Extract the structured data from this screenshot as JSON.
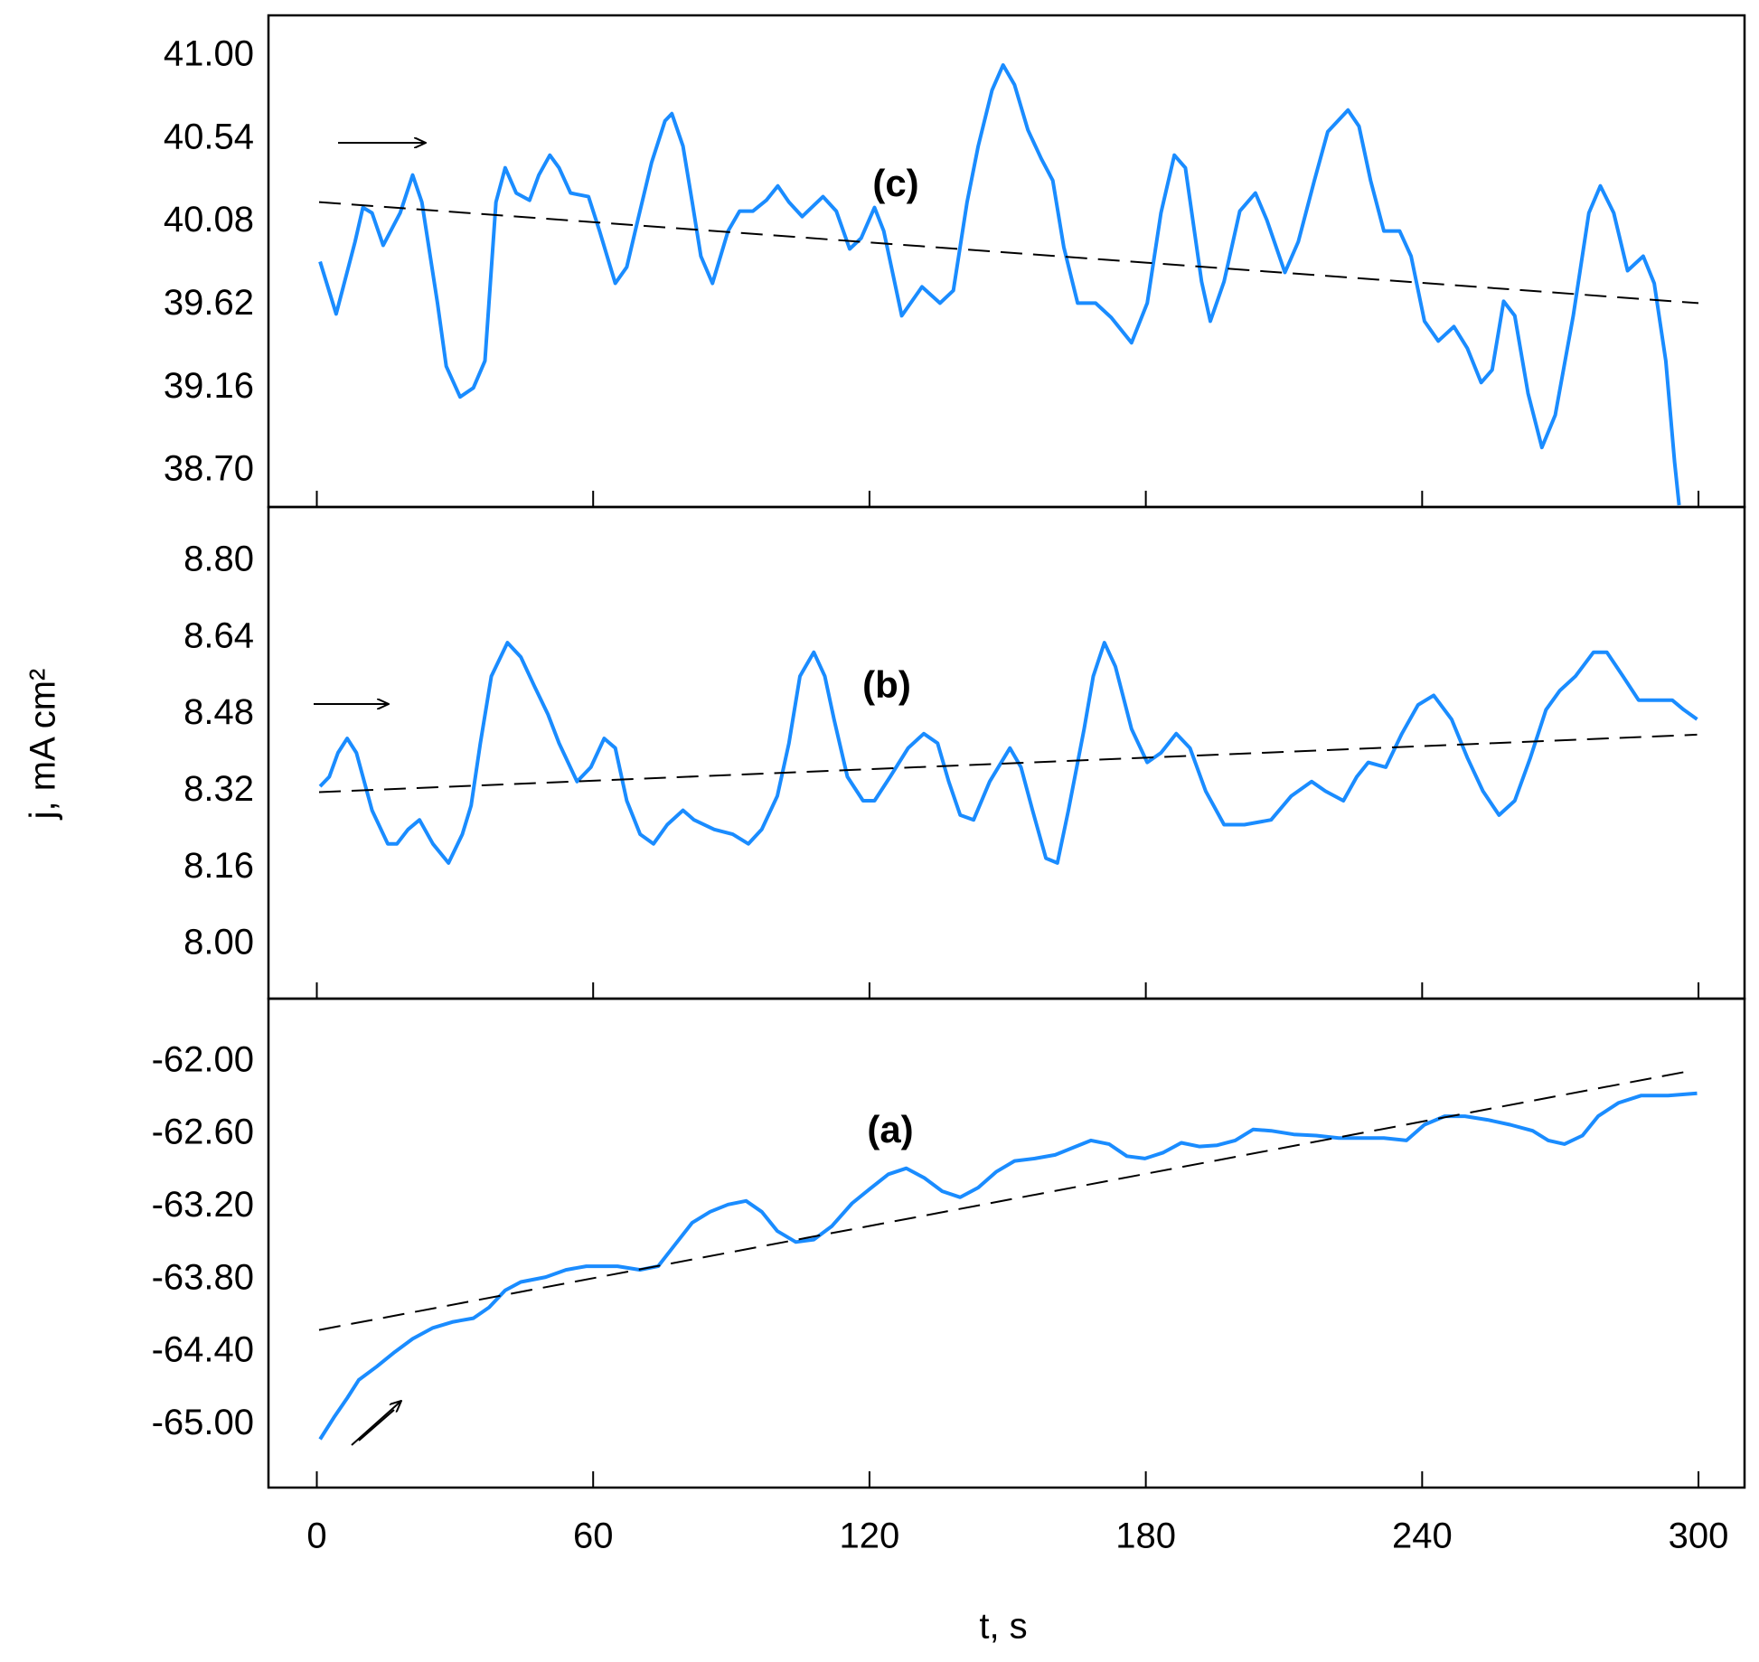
{
  "chart_data": [
    {
      "type": "line",
      "label": "(c)",
      "xlim": [
        -10.5,
        310
      ],
      "xticks": [
        0,
        60,
        120,
        180,
        240,
        300
      ],
      "ylim": [
        38.5,
        41.225
      ],
      "yticks": [
        {
          "value": 41,
          "label": "41.00"
        },
        40.54,
        40.08,
        39.62,
        39.16,
        {
          "value": 38.7,
          "label": "38.70"
        }
      ],
      "series": [
        {
          "color": "#1a8cff",
          "x": [
            0.7,
            4.2,
            8.3,
            10.0,
            12.0,
            14.4,
            18.1,
            20.8,
            22.8,
            26.2,
            28.1,
            31.1,
            34.0,
            36.5,
            38.9,
            40.9,
            43.3,
            46.2,
            48.2,
            50.6,
            52.6,
            55.1,
            59.0,
            61.4,
            64.8,
            67.3,
            69.7,
            72.7,
            75.6,
            77.1,
            79.5,
            81.5,
            83.4,
            85.9,
            89.3,
            91.8,
            94.7,
            97.6,
            100.1,
            102.5,
            105.4,
            109.9,
            112.8,
            115.7,
            118.2,
            121.1,
            123.1,
            127.0,
            131.4,
            135.3,
            138.2,
            141.2,
            143.6,
            146.6,
            149.0,
            151.5,
            154.4,
            157.3,
            159.8,
            162.2,
            165.2,
            169.1,
            172.5,
            176.9,
            180.3,
            183.3,
            186.2,
            188.6,
            192.1,
            194.0,
            197.0,
            200.4,
            203.8,
            206.3,
            210.2,
            213.1,
            216.6,
            219.5,
            223.9,
            226.3,
            228.8,
            231.7,
            235.1,
            237.6,
            240.5,
            243.5,
            246.9,
            249.8,
            252.8,
            255.2,
            257.7,
            260.1,
            263.0,
            266.0,
            268.9,
            272.8,
            276.2,
            278.7,
            281.6,
            284.6,
            288.0,
            290.4,
            292.9,
            294.8,
            295.8
          ],
          "values": [
            39.86,
            39.57,
            39.97,
            40.16,
            40.13,
            39.95,
            40.13,
            40.34,
            40.19,
            39.63,
            39.28,
            39.11,
            39.16,
            39.31,
            40.19,
            40.38,
            40.24,
            40.2,
            40.34,
            40.45,
            40.38,
            40.24,
            40.22,
            40.03,
            39.74,
            39.83,
            40.09,
            40.41,
            40.64,
            40.68,
            40.5,
            40.19,
            39.89,
            39.74,
            40.03,
            40.14,
            40.14,
            40.2,
            40.28,
            40.19,
            40.11,
            40.22,
            40.14,
            39.93,
            39.99,
            40.16,
            40.03,
            39.56,
            39.72,
            39.63,
            39.7,
            40.19,
            40.5,
            40.81,
            40.95,
            40.84,
            40.59,
            40.43,
            40.31,
            39.94,
            39.63,
            39.63,
            39.55,
            39.41,
            39.63,
            40.13,
            40.45,
            40.38,
            39.75,
            39.53,
            39.75,
            40.14,
            40.24,
            40.09,
            39.8,
            39.97,
            40.31,
            40.58,
            40.7,
            40.61,
            40.31,
            40.03,
            40.03,
            39.89,
            39.53,
            39.42,
            39.5,
            39.38,
            39.19,
            39.26,
            39.64,
            39.56,
            39.13,
            38.83,
            39.01,
            39.56,
            40.13,
            40.28,
            40.13,
            39.81,
            39.89,
            39.74,
            39.31,
            38.75,
            38.51
          ]
        },
        {
          "color": "#000000",
          "dashed": true,
          "x": [
            0.5,
            300
          ],
          "values": [
            40.19,
            39.63
          ]
        }
      ]
    },
    {
      "type": "line",
      "label": "(b)",
      "ylabel": "j, mA cm²",
      "xlim": [
        -10.5,
        310
      ],
      "xticks": [
        0,
        60,
        120,
        180,
        240,
        300
      ],
      "ylim": [
        7.887,
        8.913
      ],
      "yticks": [
        {
          "value": 8.8,
          "label": "8.80"
        },
        8.64,
        8.48,
        8.32,
        8.16,
        {
          "value": 8,
          "label": "8.00"
        }
      ],
      "series": [
        {
          "color": "#1a8cff",
          "x": [
            0.7,
            2.7,
            4.6,
            6.6,
            8.6,
            12.0,
            15.4,
            17.4,
            19.8,
            22.3,
            25.2,
            28.6,
            31.6,
            33.5,
            35.5,
            37.9,
            41.4,
            44.3,
            47.2,
            50.2,
            52.6,
            56.5,
            59.5,
            62.4,
            64.8,
            67.3,
            70.2,
            73.1,
            76.1,
            79.5,
            81.9,
            86.3,
            90.3,
            93.7,
            96.6,
            100.0,
            102.5,
            104.9,
            107.9,
            110.3,
            112.3,
            115.2,
            118.6,
            121.1,
            124.5,
            128.4,
            131.8,
            134.8,
            137.2,
            139.7,
            142.6,
            146.1,
            150.5,
            152.9,
            155.4,
            158.3,
            160.8,
            163.2,
            166.6,
            168.6,
            171.0,
            173.4,
            176.9,
            180.3,
            183.3,
            186.6,
            189.6,
            193.0,
            197.0,
            201.4,
            207.2,
            211.6,
            216.0,
            219.0,
            222.9,
            225.8,
            228.3,
            232.1,
            235.6,
            239.1,
            242.5,
            246.4,
            249.8,
            253.2,
            256.7,
            260.1,
            263.5,
            266.9,
            269.9,
            273.3,
            277.2,
            280.1,
            283.6,
            287.0,
            290.9,
            294.3,
            296.8,
            299.7
          ],
          "values": [
            8.33,
            8.35,
            8.4,
            8.43,
            8.4,
            8.28,
            8.21,
            8.21,
            8.24,
            8.26,
            8.21,
            8.17,
            8.23,
            8.29,
            8.42,
            8.56,
            8.63,
            8.6,
            8.54,
            8.48,
            8.42,
            8.34,
            8.37,
            8.43,
            8.41,
            8.3,
            8.23,
            8.21,
            8.25,
            8.28,
            8.26,
            8.24,
            8.23,
            8.21,
            8.24,
            8.31,
            8.42,
            8.56,
            8.61,
            8.56,
            8.47,
            8.35,
            8.3,
            8.3,
            8.35,
            8.41,
            8.44,
            8.42,
            8.34,
            8.27,
            8.26,
            8.34,
            8.41,
            8.37,
            8.28,
            8.18,
            8.17,
            8.28,
            8.45,
            8.56,
            8.63,
            8.58,
            8.45,
            8.38,
            8.4,
            8.44,
            8.41,
            8.32,
            8.25,
            8.25,
            8.26,
            8.31,
            8.34,
            8.32,
            8.3,
            8.35,
            8.38,
            8.37,
            8.44,
            8.5,
            8.52,
            8.47,
            8.39,
            8.32,
            8.27,
            8.3,
            8.39,
            8.49,
            8.53,
            8.56,
            8.61,
            8.61,
            8.56,
            8.51,
            8.51,
            8.51,
            8.49,
            8.47
          ]
        },
        {
          "color": "#000000",
          "dashed": true,
          "x": [
            0.5,
            299.7
          ],
          "values": [
            8.318,
            8.438
          ]
        }
      ]
    },
    {
      "type": "line",
      "label": "(a)",
      "xlabel": "t, s",
      "xlim": [
        -10.5,
        310
      ],
      "xticks": [
        0,
        60,
        120,
        180,
        240,
        300
      ],
      "ylim": [
        -65.52,
        -61.478
      ],
      "yticks": [
        {
          "value": -62,
          "label": "-62.00"
        },
        {
          "value": -62.6,
          "label": "-62.60"
        },
        {
          "value": -63.2,
          "label": "-63.20"
        },
        {
          "value": -63.8,
          "label": "-63.80"
        },
        {
          "value": -64.4,
          "label": "-64.40"
        },
        {
          "value": -65,
          "label": "-65.00"
        }
      ],
      "series": [
        {
          "color": "#1a8cff",
          "x": [
            0.7,
            3.7,
            6.6,
            9.1,
            13.0,
            16.9,
            20.8,
            25.2,
            29.6,
            34.0,
            37.4,
            40.9,
            44.3,
            49.7,
            54.1,
            58.5,
            65.3,
            70.2,
            74.1,
            77.6,
            81.5,
            85.4,
            89.3,
            93.2,
            96.6,
            100.0,
            104.0,
            107.9,
            111.8,
            116.2,
            120.1,
            124.1,
            128.0,
            131.9,
            135.8,
            139.7,
            143.6,
            147.5,
            151.5,
            155.9,
            160.3,
            164.2,
            168.1,
            172.0,
            175.9,
            179.8,
            183.8,
            187.7,
            191.6,
            195.5,
            199.4,
            203.3,
            207.2,
            212.1,
            217.0,
            221.9,
            226.8,
            231.7,
            236.6,
            240.5,
            244.9,
            249.3,
            254.2,
            259.1,
            264.0,
            267.4,
            270.9,
            274.8,
            278.2,
            282.6,
            287.5,
            293.4,
            299.7
          ],
          "values": [
            -65.12,
            -64.94,
            -64.78,
            -64.63,
            -64.52,
            -64.4,
            -64.29,
            -64.2,
            -64.15,
            -64.12,
            -64.03,
            -63.89,
            -63.82,
            -63.78,
            -63.72,
            -63.69,
            -63.69,
            -63.72,
            -63.69,
            -63.52,
            -63.33,
            -63.24,
            -63.18,
            -63.15,
            -63.24,
            -63.4,
            -63.49,
            -63.47,
            -63.36,
            -63.17,
            -63.05,
            -62.93,
            -62.88,
            -62.96,
            -63.07,
            -63.12,
            -63.04,
            -62.91,
            -62.82,
            -62.8,
            -62.77,
            -62.71,
            -62.65,
            -62.68,
            -62.78,
            -62.8,
            -62.75,
            -62.67,
            -62.7,
            -62.69,
            -62.65,
            -62.56,
            -62.57,
            -62.6,
            -62.61,
            -62.63,
            -62.63,
            -62.63,
            -62.65,
            -62.52,
            -62.45,
            -62.45,
            -62.48,
            -62.52,
            -62.57,
            -62.65,
            -62.68,
            -62.61,
            -62.45,
            -62.34,
            -62.28,
            -62.28,
            -62.26
          ]
        },
        {
          "color": "#000000",
          "dashed": true,
          "x": [
            0.5,
            298.3
          ],
          "values": [
            -64.217,
            -62.075
          ]
        }
      ]
    }
  ]
}
